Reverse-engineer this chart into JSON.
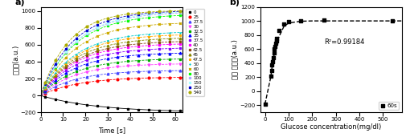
{
  "panel_a": {
    "title": "a)",
    "xlabel": "Time [s]",
    "ylabel": "신호량(a.u.)",
    "xlim": [
      0,
      63
    ],
    "ylim": [
      -200,
      1050
    ],
    "yticks": [
      -200,
      0,
      200,
      400,
      600,
      800,
      1000
    ],
    "xticks": [
      0,
      10,
      20,
      30,
      40,
      50,
      60
    ],
    "concentrations": [
      0,
      25,
      27.5,
      30,
      32.5,
      35,
      37.5,
      40,
      42.5,
      45,
      47.5,
      50,
      60,
      80,
      100,
      150,
      250,
      540
    ],
    "colors": [
      "#000000",
      "#ff0000",
      "#4444ff",
      "#ff44ff",
      "#00aa00",
      "#0000ff",
      "#8800ff",
      "#ff00ff",
      "#8b4513",
      "#888800",
      "#ffaa00",
      "#00cccc",
      "#ccaa00",
      "#00ff00",
      "#aaaaff",
      "#aaffff",
      "#0000cc",
      "#aaaa00"
    ],
    "markers": [
      "s",
      "o",
      "^",
      "v",
      "s",
      "^",
      "s",
      "s",
      "s",
      "^",
      "*",
      "+",
      "x",
      "s",
      "s",
      "s",
      "s",
      "o"
    ],
    "linestyles": [
      "-",
      "--",
      "--",
      "--",
      "--",
      "--",
      "--",
      "--",
      "--",
      "--",
      "--",
      "--",
      "--",
      "--",
      "--",
      "--",
      "--",
      "--"
    ]
  },
  "panel_b": {
    "title": "b)",
    "xlabel": "Glucose concentration(mg/dl)",
    "ylabel": "신호 변화량(a.u.)",
    "xlim": [
      -20,
      580
    ],
    "ylim": [
      -300,
      1200
    ],
    "yticks": [
      -200,
      0,
      200,
      400,
      600,
      800,
      1000,
      1200
    ],
    "xticks": [
      0,
      100,
      200,
      300,
      400,
      500
    ],
    "annotation": "R²=0.99184",
    "legend_label": "60s",
    "concentrations": [
      0,
      25,
      27.5,
      30,
      32.5,
      35,
      37.5,
      40,
      42.5,
      45,
      47.5,
      50,
      60,
      80,
      100,
      150,
      250,
      540
    ],
    "signal_at_60s": [
      -185,
      210,
      290,
      370,
      420,
      480,
      550,
      600,
      640,
      680,
      720,
      750,
      860,
      960,
      990,
      1000,
      1010,
      1005
    ],
    "fit_x": [
      0,
      25,
      30,
      35,
      40,
      50,
      60,
      80,
      100,
      150,
      200,
      250,
      300,
      350,
      400,
      450,
      500,
      540,
      580
    ],
    "fit_y": [
      -185,
      210,
      340,
      450,
      540,
      680,
      780,
      920,
      970,
      995,
      1000,
      1000,
      1000,
      1000,
      1000,
      1000,
      1000,
      1000,
      1000
    ]
  }
}
